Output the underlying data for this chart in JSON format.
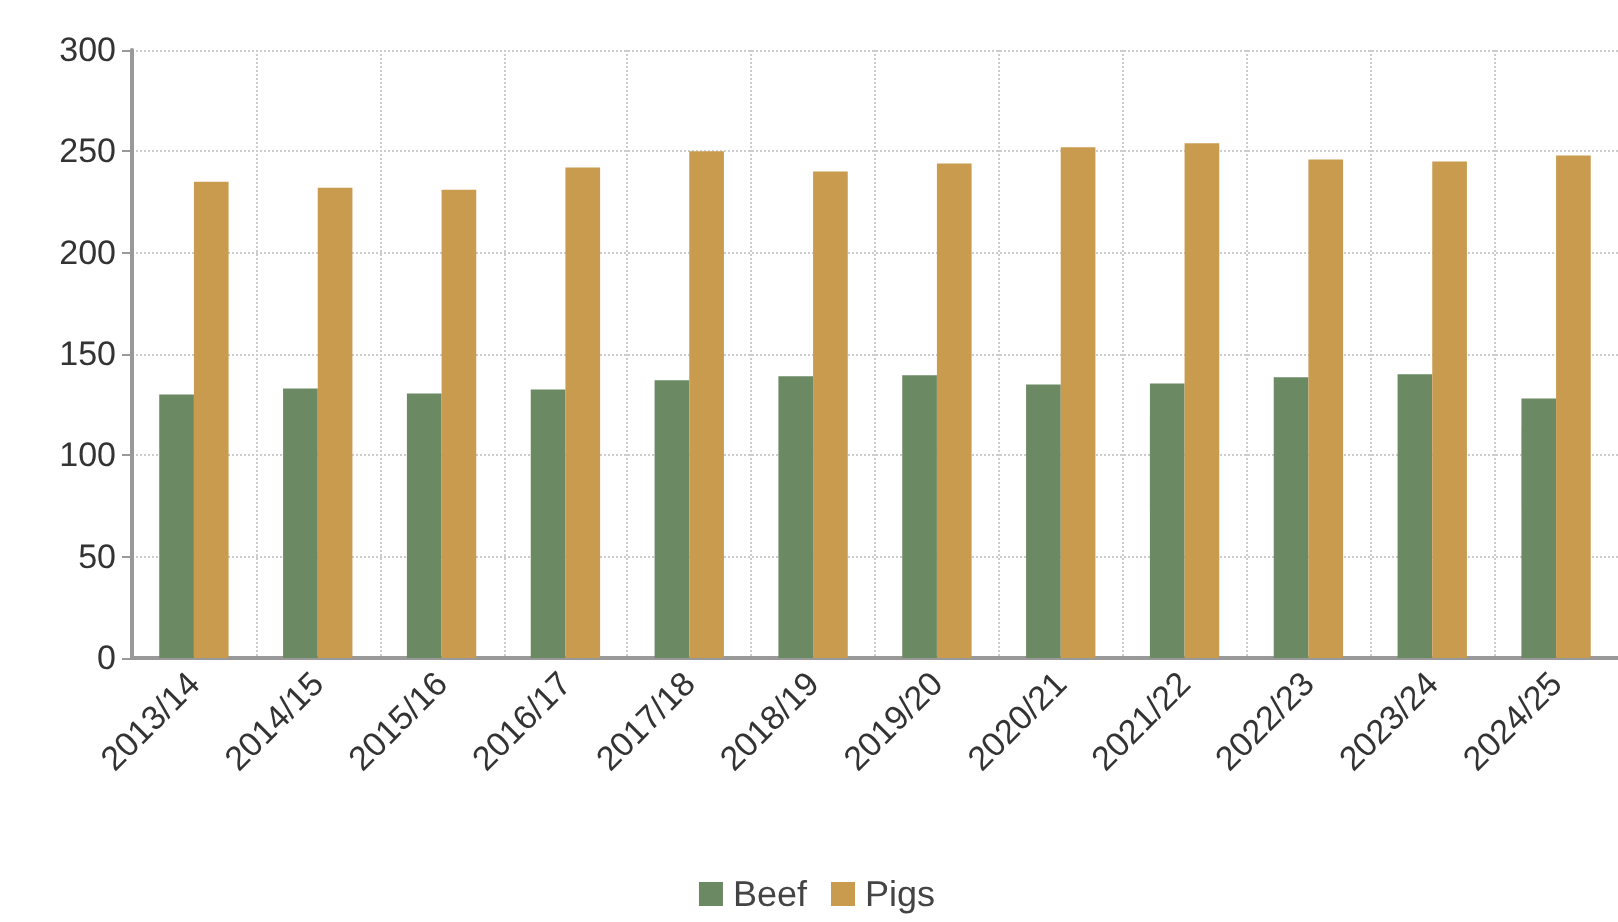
{
  "chart_data": {
    "type": "bar",
    "categories": [
      "2013/14",
      "2014/15",
      "2015/16",
      "2016/17",
      "2017/18",
      "2018/19",
      "2019/20",
      "2020/21",
      "2021/22",
      "2022/23",
      "2023/24",
      "2024/25"
    ],
    "series": [
      {
        "name": "Beef",
        "color": "#6b8963",
        "values": [
          130,
          133,
          130.5,
          132.5,
          137,
          139,
          139.5,
          135,
          135.5,
          138.5,
          140,
          128
        ]
      },
      {
        "name": "Pigs",
        "color": "#c99b4f",
        "values": [
          235,
          232,
          231,
          242,
          250,
          240,
          244,
          252,
          254,
          246,
          245,
          248
        ]
      }
    ],
    "ylim": [
      0,
      300
    ],
    "yticks": [
      0,
      50,
      100,
      150,
      200,
      250,
      300
    ],
    "grid": true,
    "legend": "bottom"
  }
}
